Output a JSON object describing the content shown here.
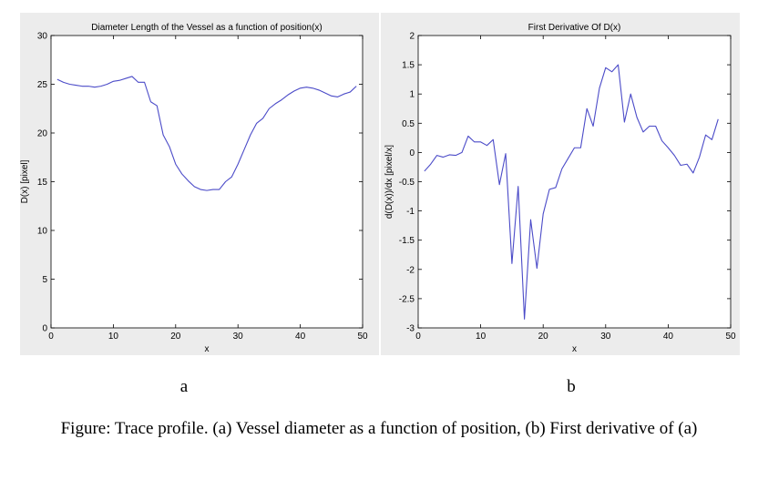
{
  "chart_data": [
    {
      "type": "line",
      "title": "Diameter Length of the Vessel as a function of position(x)",
      "xlabel": "x",
      "ylabel": "D(x) [pixel]",
      "xlim": [
        0,
        50
      ],
      "ylim": [
        0,
        30
      ],
      "xticks": [
        0,
        10,
        20,
        30,
        40,
        50
      ],
      "yticks": [
        0,
        5,
        10,
        15,
        20,
        25,
        30
      ],
      "grid": false,
      "color": "#4b4bc8",
      "series": [
        {
          "x": [
            1,
            2,
            3,
            4,
            5,
            6,
            7,
            8,
            9,
            10,
            11,
            12,
            13,
            14,
            15,
            16,
            17,
            18,
            19,
            20,
            21,
            22,
            23,
            24,
            25,
            26,
            27,
            28,
            29,
            30,
            31,
            32,
            33,
            34,
            35,
            36,
            37,
            38,
            39,
            40,
            41,
            42,
            43,
            44,
            45,
            46,
            47,
            48,
            49
          ],
          "values": [
            25.5,
            25.2,
            25.0,
            24.9,
            24.8,
            24.8,
            24.7,
            24.8,
            25.0,
            25.3,
            25.4,
            25.6,
            25.8,
            25.2,
            25.2,
            23.2,
            22.8,
            19.8,
            18.6,
            16.8,
            15.8,
            15.1,
            14.5,
            14.2,
            14.1,
            14.2,
            14.2,
            15.0,
            15.5,
            16.8,
            18.3,
            19.8,
            21.0,
            21.5,
            22.5,
            23.0,
            23.4,
            23.9,
            24.3,
            24.6,
            24.7,
            24.6,
            24.4,
            24.1,
            23.8,
            23.7,
            24.0,
            24.2,
            24.8
          ]
        }
      ]
    },
    {
      "type": "line",
      "title": "First Derivative Of D(x)",
      "xlabel": "x",
      "ylabel": "d(D(x))/dx [pixel/x]",
      "xlim": [
        0,
        50
      ],
      "ylim": [
        -3,
        2
      ],
      "xticks": [
        0,
        10,
        20,
        30,
        40,
        50
      ],
      "yticks": [
        -3,
        -2.5,
        -2,
        -1.5,
        -1,
        -0.5,
        0,
        0.5,
        1,
        1.5,
        2
      ],
      "grid": false,
      "color": "#4b4bc8",
      "series": [
        {
          "x": [
            1,
            2,
            3,
            4,
            5,
            6,
            7,
            8,
            9,
            10,
            11,
            12,
            13,
            14,
            15,
            16,
            17,
            18,
            19,
            20,
            21,
            22,
            23,
            24,
            25,
            26,
            27,
            28,
            29,
            30,
            31,
            32,
            33,
            34,
            35,
            36,
            37,
            38,
            39,
            40,
            41,
            42,
            43,
            44,
            45,
            46,
            47,
            48
          ],
          "values": [
            -0.32,
            -0.2,
            -0.05,
            -0.08,
            -0.04,
            -0.05,
            0.0,
            0.28,
            0.18,
            0.18,
            0.12,
            0.22,
            -0.55,
            -0.02,
            -1.9,
            -0.58,
            -2.85,
            -1.15,
            -1.98,
            -1.05,
            -0.63,
            -0.6,
            -0.28,
            -0.1,
            0.08,
            0.08,
            0.75,
            0.45,
            1.1,
            1.45,
            1.38,
            1.5,
            0.52,
            1.0,
            0.6,
            0.35,
            0.45,
            0.45,
            0.2,
            0.08,
            -0.05,
            -0.22,
            -0.2,
            -0.35,
            -0.08,
            0.3,
            0.22,
            0.57
          ]
        }
      ]
    }
  ],
  "labels": {
    "a": "a",
    "b": "b"
  },
  "caption": "Figure: Trace profile. (a) Vessel diameter as a function of position, (b) First derivative of (a)"
}
